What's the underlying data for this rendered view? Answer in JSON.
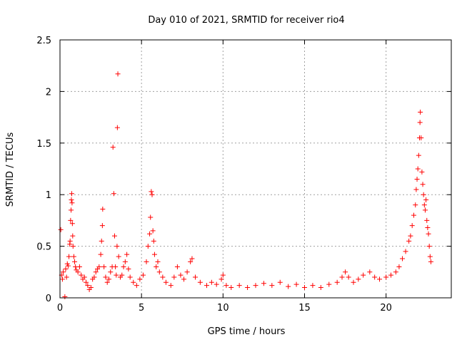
{
  "chart_data": {
    "type": "scatter",
    "title": "Day 010 of 2021, SRMTID for receiver rio4",
    "xlabel": "GPS time / hours",
    "ylabel": "SRMTID / TECUs",
    "xlim": [
      0,
      24
    ],
    "ylim": [
      0,
      2.5
    ],
    "xticks": [
      "0",
      "5",
      "10",
      "15",
      "20"
    ],
    "yticks": [
      "0",
      "0.5",
      "1",
      "1.5",
      "2",
      "2.5"
    ],
    "grid": true,
    "marker": "+",
    "color": "#ff0000",
    "series": [
      {
        "name": "SRMTID",
        "points": [
          [
            0.05,
            0.66
          ],
          [
            0.1,
            0.22
          ],
          [
            0.15,
            0.18
          ],
          [
            0.2,
            0.25
          ],
          [
            0.3,
            0.01
          ],
          [
            0.35,
            0.28
          ],
          [
            0.4,
            0.2
          ],
          [
            0.45,
            0.33
          ],
          [
            0.5,
            0.31
          ],
          [
            0.55,
            0.4
          ],
          [
            0.6,
            0.52
          ],
          [
            0.62,
            0.55
          ],
          [
            0.65,
            0.75
          ],
          [
            0.68,
            0.85
          ],
          [
            0.7,
            0.95
          ],
          [
            0.72,
            1.01
          ],
          [
            0.74,
            0.92
          ],
          [
            0.76,
            0.72
          ],
          [
            0.78,
            0.6
          ],
          [
            0.8,
            0.5
          ],
          [
            0.85,
            0.4
          ],
          [
            0.9,
            0.35
          ],
          [
            0.95,
            0.3
          ],
          [
            1.0,
            0.27
          ],
          [
            1.1,
            0.25
          ],
          [
            1.2,
            0.3
          ],
          [
            1.3,
            0.22
          ],
          [
            1.4,
            0.18
          ],
          [
            1.5,
            0.2
          ],
          [
            1.6,
            0.15
          ],
          [
            1.7,
            0.12
          ],
          [
            1.8,
            0.08
          ],
          [
            1.9,
            0.1
          ],
          [
            2.0,
            0.18
          ],
          [
            2.1,
            0.2
          ],
          [
            2.2,
            0.25
          ],
          [
            2.3,
            0.28
          ],
          [
            2.4,
            0.3
          ],
          [
            2.5,
            0.42
          ],
          [
            2.55,
            0.55
          ],
          [
            2.6,
            0.7
          ],
          [
            2.62,
            0.86
          ],
          [
            2.7,
            0.3
          ],
          [
            2.8,
            0.2
          ],
          [
            2.9,
            0.15
          ],
          [
            3.0,
            0.18
          ],
          [
            3.1,
            0.25
          ],
          [
            3.2,
            0.3
          ],
          [
            3.25,
            1.46
          ],
          [
            3.3,
            1.01
          ],
          [
            3.35,
            0.6
          ],
          [
            3.4,
            0.3
          ],
          [
            3.45,
            0.22
          ],
          [
            3.5,
            0.5
          ],
          [
            3.52,
            1.65
          ],
          [
            3.55,
            2.17
          ],
          [
            3.6,
            0.4
          ],
          [
            3.7,
            0.2
          ],
          [
            3.8,
            0.22
          ],
          [
            3.9,
            0.3
          ],
          [
            4.0,
            0.35
          ],
          [
            4.1,
            0.42
          ],
          [
            4.2,
            0.28
          ],
          [
            4.3,
            0.2
          ],
          [
            4.5,
            0.15
          ],
          [
            4.7,
            0.12
          ],
          [
            4.9,
            0.18
          ],
          [
            5.1,
            0.22
          ],
          [
            5.3,
            0.35
          ],
          [
            5.4,
            0.5
          ],
          [
            5.5,
            0.62
          ],
          [
            5.55,
            0.78
          ],
          [
            5.6,
            1.03
          ],
          [
            5.65,
            1.0
          ],
          [
            5.7,
            0.65
          ],
          [
            5.75,
            0.55
          ],
          [
            5.8,
            0.42
          ],
          [
            5.9,
            0.3
          ],
          [
            6.0,
            0.35
          ],
          [
            6.1,
            0.25
          ],
          [
            6.3,
            0.2
          ],
          [
            6.5,
            0.15
          ],
          [
            6.8,
            0.12
          ],
          [
            7.0,
            0.2
          ],
          [
            7.2,
            0.3
          ],
          [
            7.4,
            0.22
          ],
          [
            7.6,
            0.18
          ],
          [
            7.8,
            0.25
          ],
          [
            8.0,
            0.35
          ],
          [
            8.1,
            0.38
          ],
          [
            8.3,
            0.2
          ],
          [
            8.6,
            0.15
          ],
          [
            9.0,
            0.12
          ],
          [
            9.3,
            0.15
          ],
          [
            9.6,
            0.13
          ],
          [
            9.9,
            0.18
          ],
          [
            10.0,
            0.22
          ],
          [
            10.2,
            0.12
          ],
          [
            10.5,
            0.1
          ],
          [
            11.0,
            0.12
          ],
          [
            11.5,
            0.1
          ],
          [
            12.0,
            0.12
          ],
          [
            12.5,
            0.14
          ],
          [
            13.0,
            0.12
          ],
          [
            13.5,
            0.15
          ],
          [
            14.0,
            0.11
          ],
          [
            14.5,
            0.13
          ],
          [
            15.0,
            0.1
          ],
          [
            15.5,
            0.12
          ],
          [
            16.0,
            0.1
          ],
          [
            16.5,
            0.13
          ],
          [
            17.0,
            0.15
          ],
          [
            17.3,
            0.2
          ],
          [
            17.5,
            0.25
          ],
          [
            17.7,
            0.2
          ],
          [
            18.0,
            0.15
          ],
          [
            18.3,
            0.18
          ],
          [
            18.6,
            0.22
          ],
          [
            19.0,
            0.25
          ],
          [
            19.3,
            0.2
          ],
          [
            19.6,
            0.18
          ],
          [
            20.0,
            0.2
          ],
          [
            20.3,
            0.22
          ],
          [
            20.6,
            0.25
          ],
          [
            20.8,
            0.3
          ],
          [
            21.0,
            0.38
          ],
          [
            21.2,
            0.45
          ],
          [
            21.4,
            0.55
          ],
          [
            21.5,
            0.6
          ],
          [
            21.6,
            0.7
          ],
          [
            21.7,
            0.8
          ],
          [
            21.8,
            0.9
          ],
          [
            21.85,
            1.05
          ],
          [
            21.9,
            1.15
          ],
          [
            21.95,
            1.25
          ],
          [
            22.0,
            1.38
          ],
          [
            22.05,
            1.55
          ],
          [
            22.08,
            1.7
          ],
          [
            22.1,
            1.8
          ],
          [
            22.15,
            1.55
          ],
          [
            22.2,
            1.22
          ],
          [
            22.25,
            1.1
          ],
          [
            22.3,
            1.0
          ],
          [
            22.35,
            0.9
          ],
          [
            22.4,
            0.85
          ],
          [
            22.45,
            0.95
          ],
          [
            22.5,
            0.75
          ],
          [
            22.55,
            0.68
          ],
          [
            22.6,
            0.62
          ],
          [
            22.65,
            0.5
          ],
          [
            22.7,
            0.4
          ],
          [
            22.75,
            0.35
          ]
        ]
      }
    ]
  }
}
